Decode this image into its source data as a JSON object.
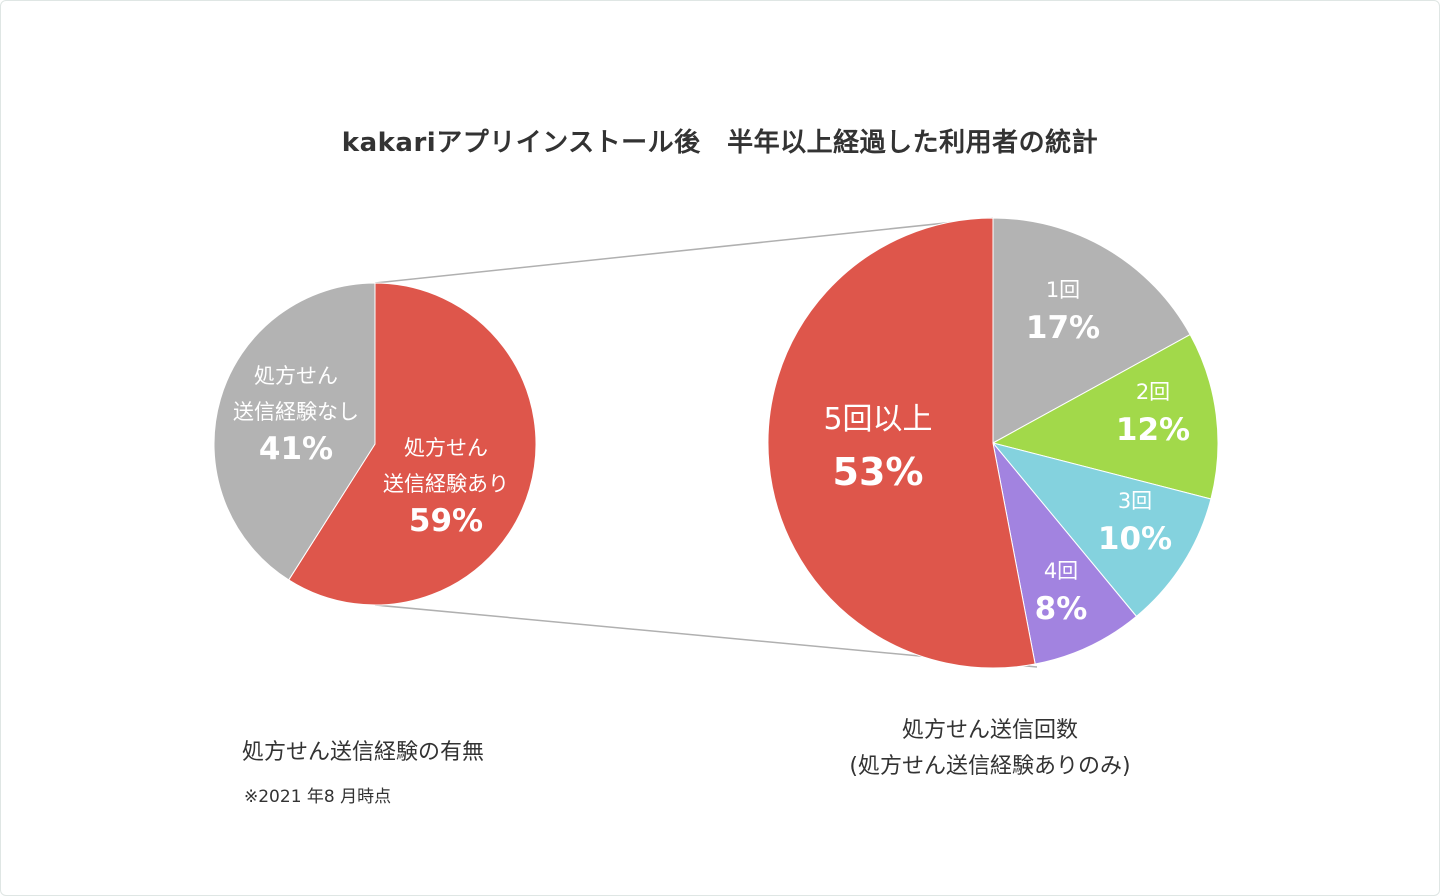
{
  "title": "kakariアプリインストール後　半年以上経過した利用者の統計",
  "chart_data": [
    {
      "type": "pie",
      "caption": "処方せん送信経験の有無",
      "note": "※2021 年8 月時点",
      "slices": [
        {
          "label_lines": [
            "処方せん",
            "送信経験あり"
          ],
          "value": 59,
          "percent_label": "59%",
          "color": "#de564b"
        },
        {
          "label_lines": [
            "処方せん",
            "送信経験なし"
          ],
          "value": 41,
          "percent_label": "41%",
          "color": "#b3b3b3"
        }
      ]
    },
    {
      "type": "pie",
      "caption_lines": [
        "処方せん送信回数",
        "(処方せん送信経験ありのみ)"
      ],
      "slices": [
        {
          "label_lines": [
            "1回"
          ],
          "value": 17,
          "percent_label": "17%",
          "color": "#b3b3b3"
        },
        {
          "label_lines": [
            "2回"
          ],
          "value": 12,
          "percent_label": "12%",
          "color": "#a2d94a"
        },
        {
          "label_lines": [
            "3回"
          ],
          "value": 10,
          "percent_label": "10%",
          "color": "#84d2de"
        },
        {
          "label_lines": [
            "4回"
          ],
          "value": 8,
          "percent_label": "8%",
          "color": "#a283e0"
        },
        {
          "label_lines": [
            "5回以上"
          ],
          "value": 53,
          "percent_label": "53%",
          "color": "#de564b"
        }
      ]
    }
  ]
}
